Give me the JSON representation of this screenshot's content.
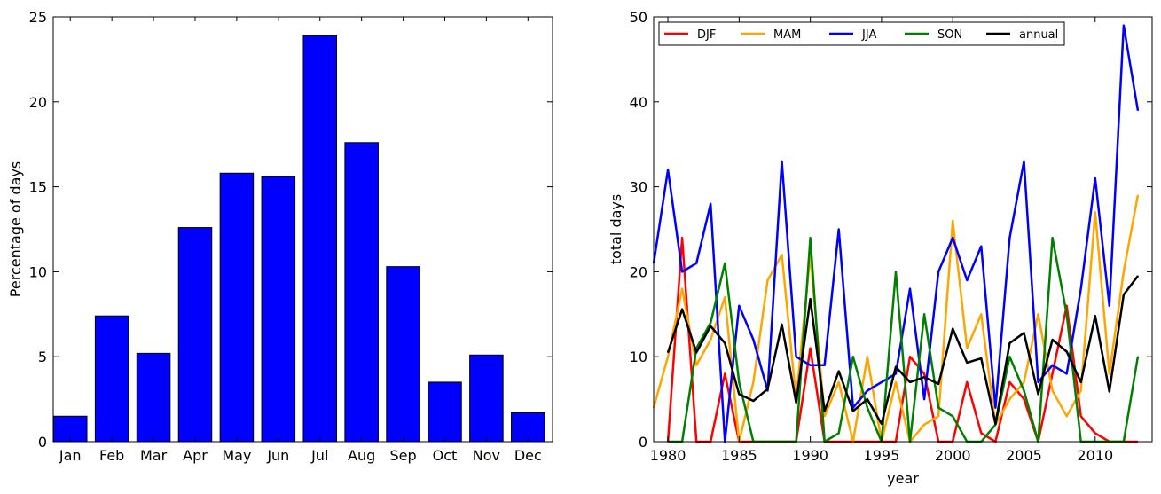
{
  "chart_data": [
    {
      "type": "bar",
      "categories": [
        "Jan",
        "Feb",
        "Mar",
        "Apr",
        "May",
        "Jun",
        "Jul",
        "Aug",
        "Sep",
        "Oct",
        "Nov",
        "Dec"
      ],
      "values": [
        1.5,
        7.4,
        5.2,
        12.6,
        15.8,
        15.6,
        23.9,
        17.6,
        10.3,
        3.5,
        5.1,
        1.7
      ],
      "ylabel": "Percentage of days",
      "ylim": [
        0,
        25
      ],
      "yticks": [
        0,
        5,
        10,
        15,
        20,
        25
      ],
      "bar_color": "#0000ff",
      "grid": false
    },
    {
      "type": "line",
      "xlabel": "year",
      "ylabel": "total days",
      "xlim": [
        1979,
        2014
      ],
      "ylim": [
        0,
        50
      ],
      "xticks": [
        1980,
        1985,
        1990,
        1995,
        2000,
        2005,
        2010
      ],
      "yticks": [
        0,
        10,
        20,
        30,
        40,
        50
      ],
      "grid": false,
      "legend_position": "top, full width",
      "series": [
        {
          "name": "DJF",
          "color": "#ff0000",
          "x": [
            1980,
            1981,
            1982,
            1983,
            1984,
            1985,
            1986,
            1987,
            1988,
            1989,
            1990,
            1991,
            1992,
            1993,
            1994,
            1995,
            1996,
            1997,
            1998,
            1999,
            2000,
            2001,
            2002,
            2003,
            2004,
            2005,
            2006,
            2007,
            2008,
            2009,
            2010,
            2011,
            2012,
            2013
          ],
          "values": [
            0,
            24,
            0,
            0,
            8,
            0,
            0,
            0,
            0,
            0,
            11,
            0,
            0,
            0,
            0,
            0,
            0,
            10,
            8,
            0,
            0,
            7,
            1,
            0,
            7,
            5,
            0,
            8,
            16,
            3,
            1,
            0,
            0,
            0
          ]
        },
        {
          "name": "MAM",
          "color": "#ffa500",
          "x": [
            1979,
            1980,
            1981,
            1982,
            1983,
            1984,
            1985,
            1986,
            1987,
            1988,
            1989,
            1990,
            1991,
            1992,
            1993,
            1994,
            1995,
            1996,
            1997,
            1998,
            1999,
            2000,
            2001,
            2002,
            2003,
            2004,
            2005,
            2006,
            2007,
            2008,
            2009,
            2010,
            2011,
            2012,
            2013
          ],
          "values": [
            4,
            10,
            18,
            9,
            12,
            17,
            0,
            7,
            19,
            22,
            5,
            22,
            3,
            7,
            0,
            10,
            0,
            7,
            0,
            2,
            3,
            26,
            11,
            15,
            2,
            5,
            7,
            15,
            6,
            3,
            6,
            27,
            8,
            20,
            29
          ]
        },
        {
          "name": "JJA",
          "color": "#0000ff",
          "x": [
            1979,
            1980,
            1981,
            1982,
            1983,
            1984,
            1985,
            1986,
            1987,
            1988,
            1989,
            1990,
            1991,
            1992,
            1993,
            1994,
            1995,
            1996,
            1997,
            1998,
            1999,
            2000,
            2001,
            2002,
            2003,
            2004,
            2005,
            2006,
            2007,
            2008,
            2009,
            2010,
            2011,
            2012,
            2013
          ],
          "values": [
            21,
            32,
            20,
            21,
            28,
            0,
            16,
            12,
            6,
            33,
            10,
            9,
            9,
            25,
            4,
            6,
            7,
            8,
            18,
            5,
            20,
            24,
            19,
            23,
            4,
            24,
            33,
            7,
            9,
            8,
            18,
            31,
            16,
            49,
            39
          ]
        },
        {
          "name": "SON",
          "color": "#008000",
          "x": [
            1980,
            1981,
            1982,
            1983,
            1984,
            1985,
            1986,
            1987,
            1988,
            1989,
            1990,
            1991,
            1992,
            1993,
            1994,
            1995,
            1996,
            1997,
            1998,
            1999,
            2000,
            2001,
            2002,
            2003,
            2004,
            2005,
            2006,
            2007,
            2008,
            2009,
            2010,
            2011,
            2012,
            2013
          ],
          "values": [
            0,
            0,
            11,
            14,
            21,
            7,
            0,
            0,
            0,
            0,
            24,
            0,
            1,
            10,
            4,
            0,
            20,
            0,
            15,
            4,
            3,
            0,
            0,
            2,
            10,
            6,
            0,
            24,
            15,
            0,
            0,
            0,
            0,
            10
          ]
        },
        {
          "name": "annual",
          "color": "#000000",
          "x": [
            1980,
            1981,
            1982,
            1983,
            1984,
            1985,
            1986,
            1987,
            1988,
            1989,
            1990,
            1991,
            1992,
            1993,
            1994,
            1995,
            1996,
            1997,
            1998,
            1999,
            2000,
            2001,
            2002,
            2003,
            2004,
            2005,
            2006,
            2007,
            2008,
            2009,
            2010,
            2011,
            2012,
            2013
          ],
          "values": [
            10.5,
            15.6,
            10.5,
            13.6,
            11.6,
            5.6,
            4.8,
            6.2,
            13.8,
            4.6,
            16.8,
            3.6,
            8.3,
            3.6,
            5.0,
            2.1,
            8.8,
            7.0,
            7.6,
            6.8,
            13.3,
            9.3,
            9.8,
            2.1,
            11.6,
            12.8,
            5.6,
            12.0,
            10.6,
            7.0,
            14.8,
            5.9,
            17.3,
            19.5
          ]
        }
      ]
    }
  ]
}
